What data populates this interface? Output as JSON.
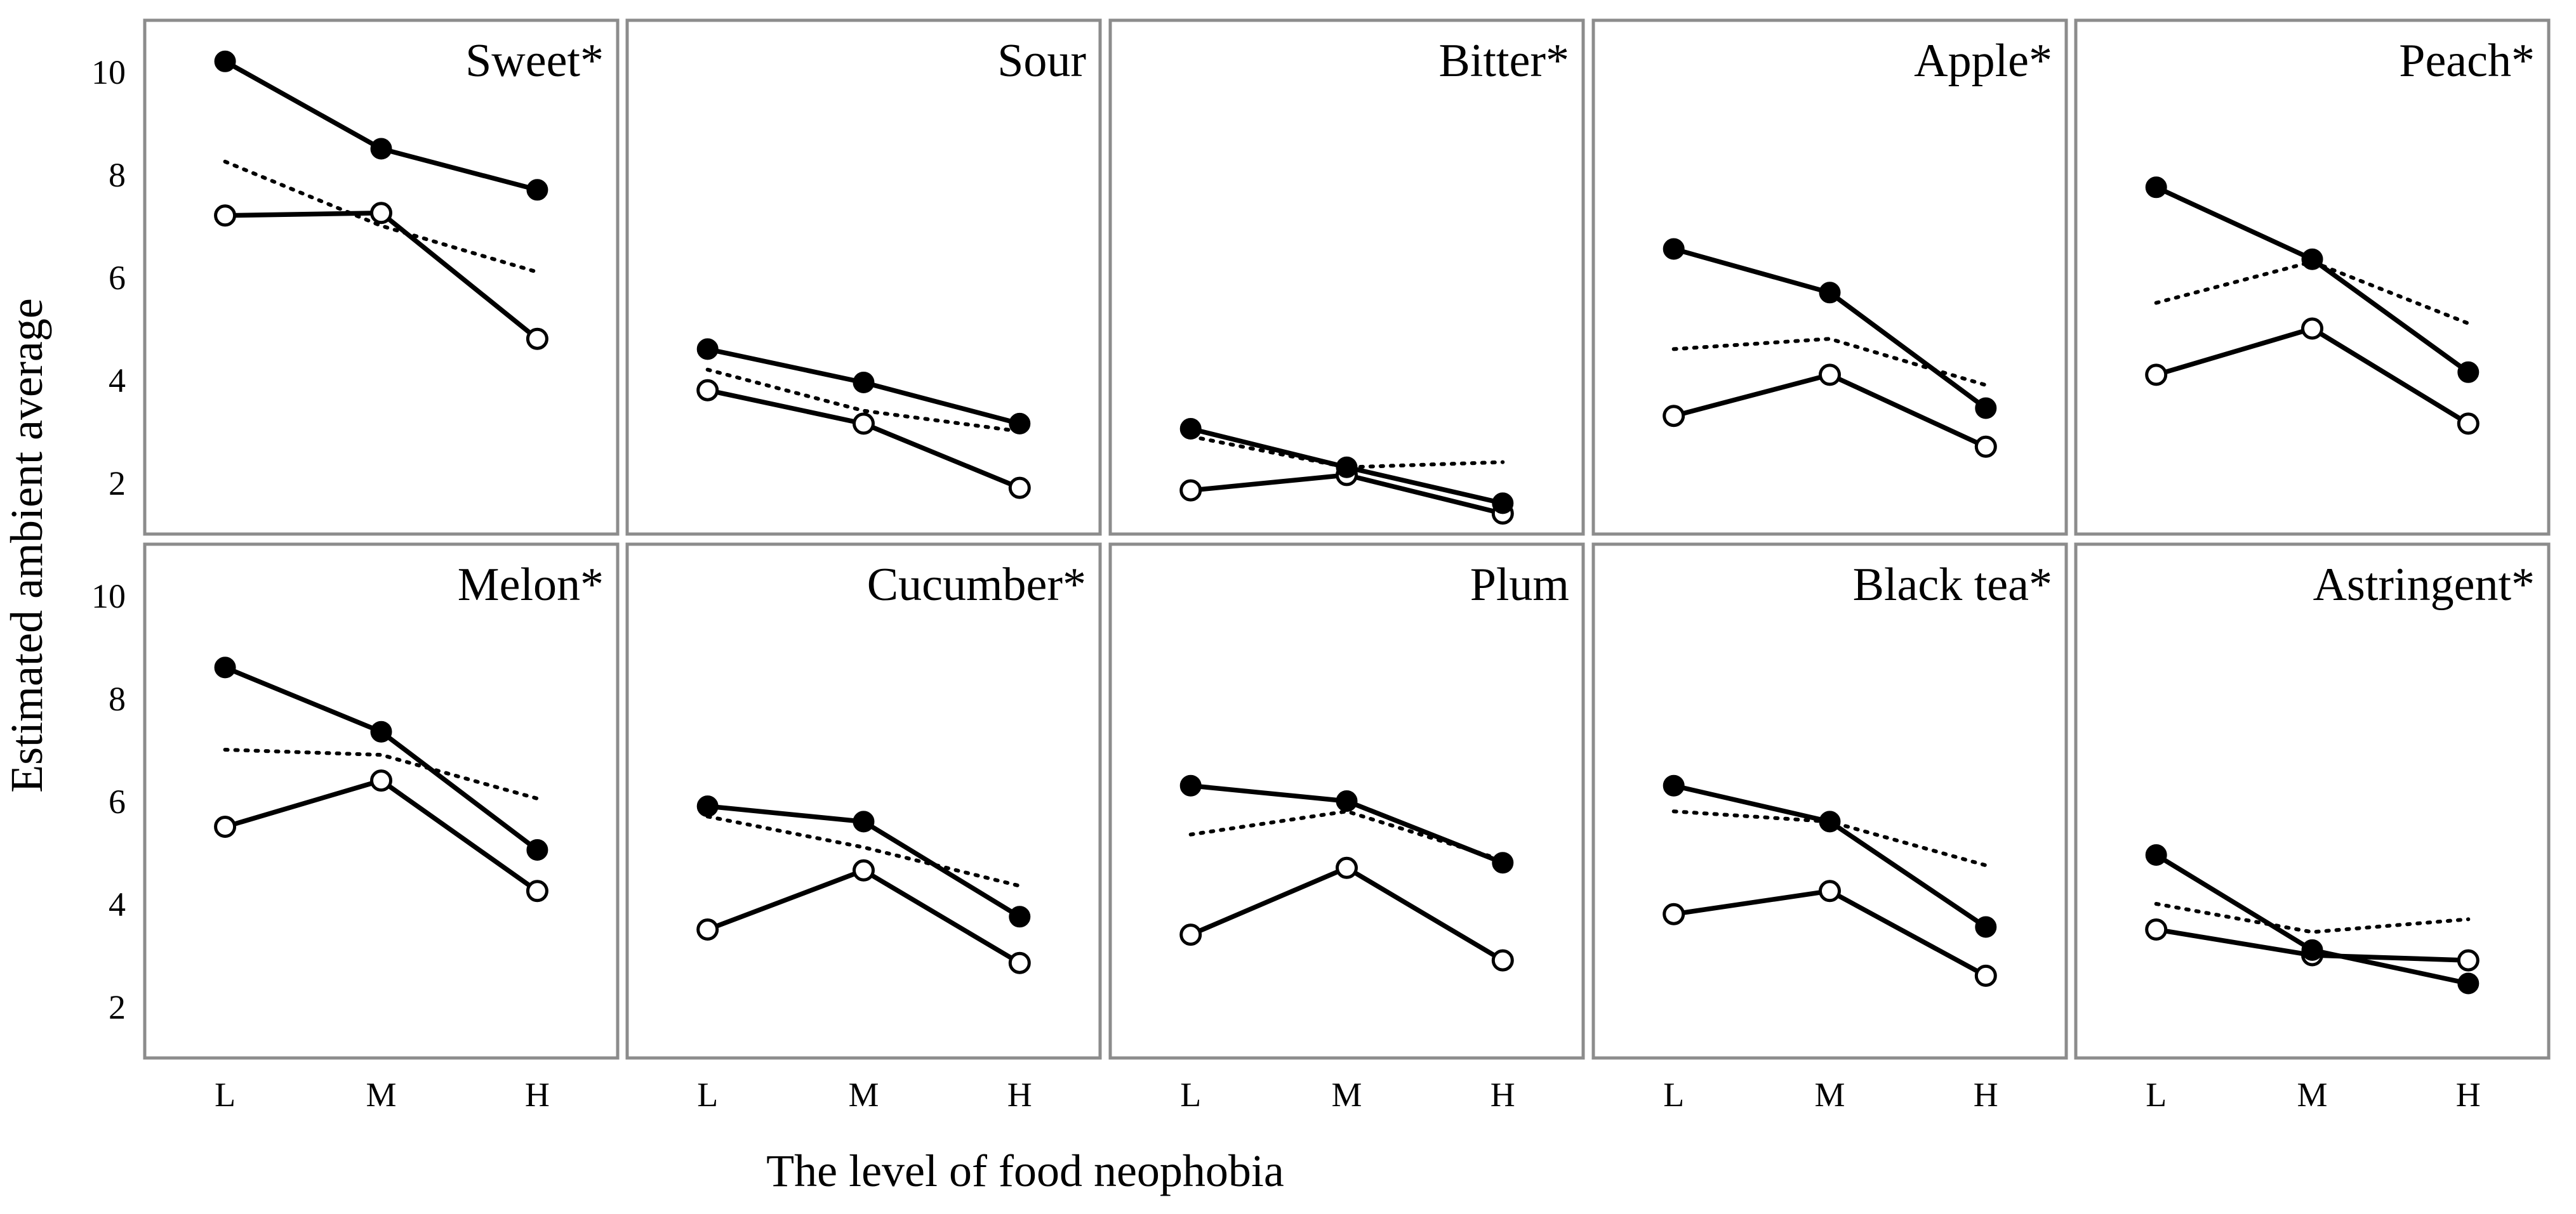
{
  "chart_data": {
    "type": "line",
    "xlabel": "The level of food neophobia",
    "ylabel": "Estimated ambient average",
    "categories": [
      "L",
      "M",
      "H"
    ],
    "ylim": [
      1,
      11
    ],
    "yticks": [
      2,
      4,
      6,
      8,
      10
    ],
    "series_styles": [
      {
        "name": "filled",
        "marker": "filled-circle",
        "line": "solid"
      },
      {
        "name": "open",
        "marker": "open-circle",
        "line": "solid"
      },
      {
        "name": "dotted",
        "marker": "none",
        "line": "dotted"
      }
    ],
    "panels": [
      {
        "title": "Sweet*",
        "series": [
          {
            "name": "filled",
            "values": [
              10.2,
              8.5,
              7.7
            ]
          },
          {
            "name": "open",
            "values": [
              7.2,
              7.25,
              4.8
            ]
          },
          {
            "name": "dotted",
            "values": [
              8.25,
              7.0,
              6.1
            ]
          }
        ]
      },
      {
        "title": "Sour",
        "series": [
          {
            "name": "filled",
            "values": [
              4.6,
              3.95,
              3.15
            ]
          },
          {
            "name": "open",
            "values": [
              3.8,
              3.15,
              1.9
            ]
          },
          {
            "name": "dotted",
            "values": [
              4.2,
              3.4,
              3.0
            ]
          }
        ]
      },
      {
        "title": "Bitter*",
        "series": [
          {
            "name": "filled",
            "values": [
              3.05,
              2.3,
              1.6
            ]
          },
          {
            "name": "open",
            "values": [
              1.85,
              2.15,
              1.4
            ]
          },
          {
            "name": "dotted",
            "values": [
              2.9,
              2.3,
              2.4
            ]
          }
        ]
      },
      {
        "title": "Apple*",
        "series": [
          {
            "name": "filled",
            "values": [
              6.55,
              5.7,
              3.45
            ]
          },
          {
            "name": "open",
            "values": [
              3.3,
              4.1,
              2.7
            ]
          },
          {
            "name": "dotted",
            "values": [
              4.6,
              4.8,
              3.9
            ]
          }
        ]
      },
      {
        "title": "Peach*",
        "series": [
          {
            "name": "filled",
            "values": [
              7.75,
              6.35,
              4.15
            ]
          },
          {
            "name": "open",
            "values": [
              4.1,
              5.0,
              3.15
            ]
          },
          {
            "name": "dotted",
            "values": [
              5.5,
              6.3,
              5.1
            ]
          }
        ]
      },
      {
        "title": "Melon*",
        "series": [
          {
            "name": "filled",
            "values": [
              8.6,
              7.35,
              5.05
            ]
          },
          {
            "name": "open",
            "values": [
              5.5,
              6.4,
              4.25
            ]
          },
          {
            "name": "dotted",
            "values": [
              7.0,
              6.9,
              6.05
            ]
          }
        ]
      },
      {
        "title": "Cucumber*",
        "series": [
          {
            "name": "filled",
            "values": [
              5.9,
              5.6,
              3.75
            ]
          },
          {
            "name": "open",
            "values": [
              3.5,
              4.65,
              2.85
            ]
          },
          {
            "name": "dotted",
            "values": [
              5.7,
              5.1,
              4.35
            ]
          }
        ]
      },
      {
        "title": "Plum",
        "series": [
          {
            "name": "filled",
            "values": [
              6.3,
              6.0,
              4.8
            ]
          },
          {
            "name": "open",
            "values": [
              3.4,
              4.7,
              2.9
            ]
          },
          {
            "name": "dotted",
            "values": [
              5.35,
              5.8,
              4.85
            ]
          }
        ]
      },
      {
        "title": "Black tea*",
        "series": [
          {
            "name": "filled",
            "values": [
              6.3,
              5.6,
              3.55
            ]
          },
          {
            "name": "open",
            "values": [
              3.8,
              4.25,
              2.6
            ]
          },
          {
            "name": "dotted",
            "values": [
              5.8,
              5.6,
              4.75
            ]
          }
        ]
      },
      {
        "title": "Astringent*",
        "series": [
          {
            "name": "filled",
            "values": [
              4.95,
              3.1,
              2.45
            ]
          },
          {
            "name": "open",
            "values": [
              3.5,
              3.0,
              2.9
            ]
          },
          {
            "name": "dotted",
            "values": [
              4.0,
              3.45,
              3.7
            ]
          }
        ]
      }
    ]
  }
}
